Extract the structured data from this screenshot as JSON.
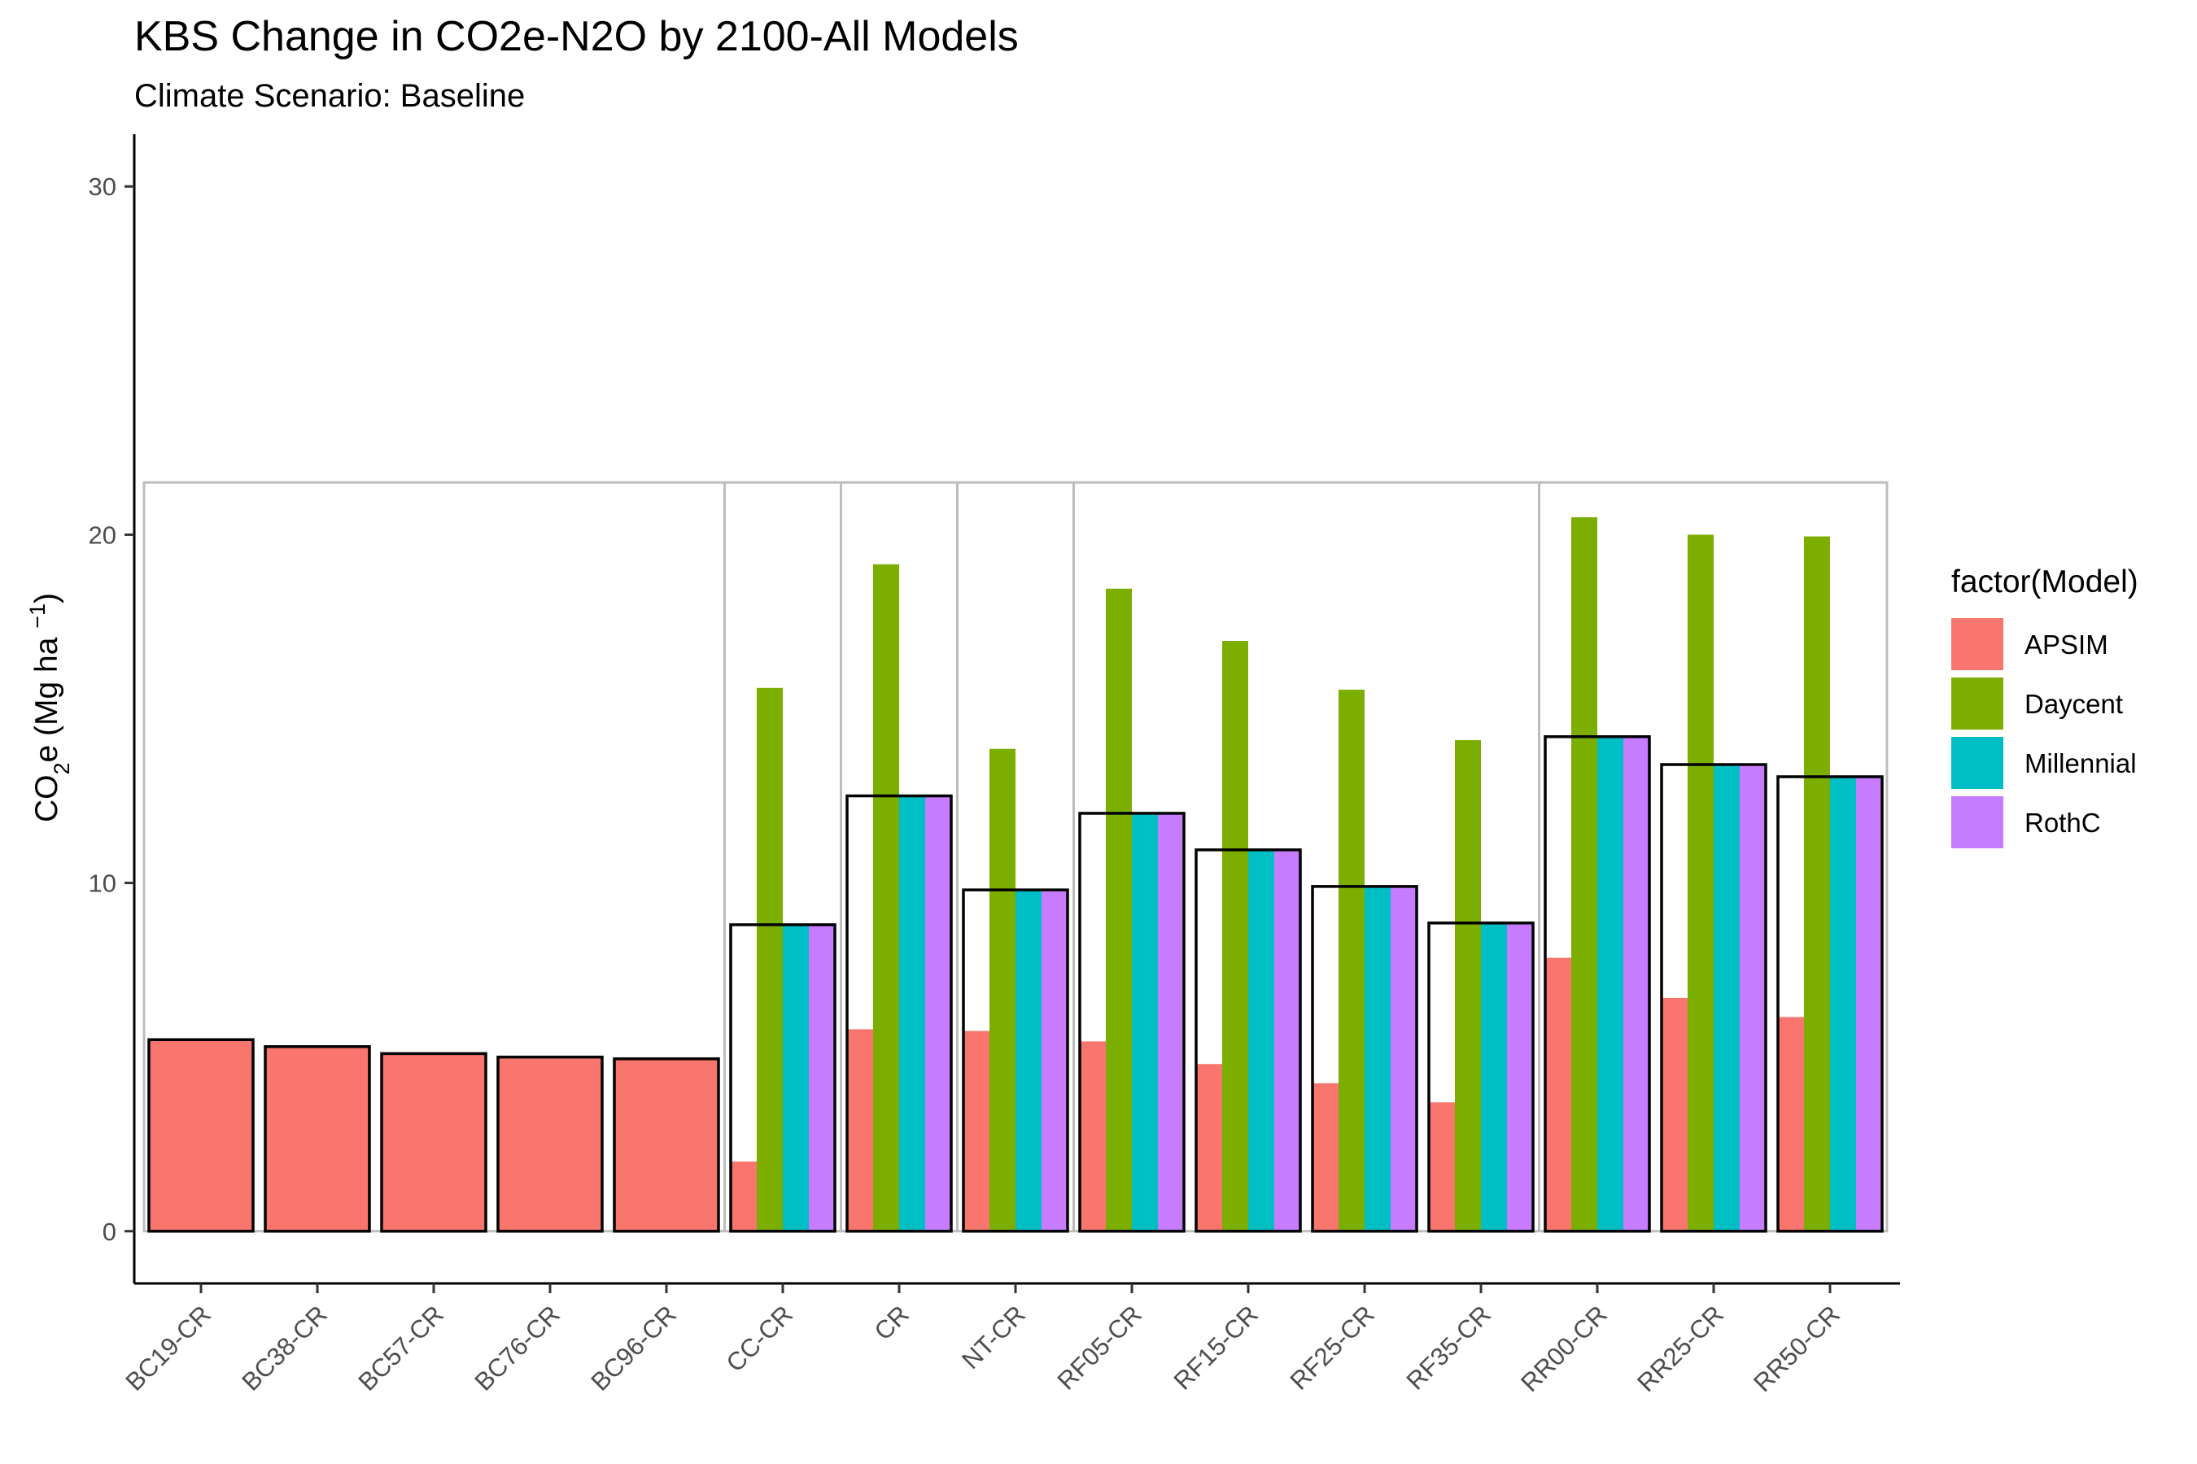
{
  "chart_data": {
    "type": "bar",
    "title": "KBS Change in CO2e-N2O by 2100-All Models",
    "subtitle": "Climate Scenario: Baseline",
    "ylabel": {
      "prefix": "CO",
      "sub": "2",
      "mid": "e (Mg ha ",
      "sup": "−1",
      "suffix": ")"
    },
    "xlabel": "",
    "ylim": [
      -1.5,
      31.5
    ],
    "yticks": [
      0,
      10,
      20,
      30
    ],
    "grid": false,
    "legend": {
      "title": "factor(Model)",
      "position": "right",
      "entries": [
        {
          "name": "APSIM",
          "color": "#F8766D"
        },
        {
          "name": "Daycent",
          "color": "#7CAE00"
        },
        {
          "name": "Millennial",
          "color": "#00BFC4"
        },
        {
          "name": "RothC",
          "color": "#C77CFF"
        }
      ]
    },
    "categories": [
      "BC19-CR",
      "BC38-CR",
      "BC57-CR",
      "BC76-CR",
      "BC96-CR",
      "CC-CR",
      "CR",
      "NT-CR",
      "RF05-CR",
      "RF15-CR",
      "RF25-CR",
      "RF35-CR",
      "RR00-CR",
      "RR25-CR",
      "RR50-CR"
    ],
    "series": [
      {
        "name": "APSIM",
        "values": [
          5.5,
          5.3,
          5.1,
          5.0,
          4.95,
          2.0,
          5.8,
          5.75,
          5.45,
          4.8,
          4.25,
          3.7,
          7.85,
          6.7,
          6.15
        ]
      },
      {
        "name": "Daycent",
        "values": [
          null,
          null,
          null,
          null,
          null,
          15.6,
          19.15,
          13.85,
          18.45,
          16.95,
          15.55,
          14.1,
          20.5,
          20.0,
          19.95
        ]
      },
      {
        "name": "Millennial",
        "values": [
          null,
          null,
          null,
          null,
          null,
          8.8,
          12.5,
          9.8,
          12.0,
          10.95,
          9.9,
          8.85,
          14.2,
          13.4,
          13.05
        ]
      },
      {
        "name": "RothC",
        "values": [
          null,
          null,
          null,
          null,
          null,
          8.8,
          12.5,
          9.8,
          12.0,
          10.95,
          9.9,
          8.85,
          14.2,
          13.4,
          13.05
        ]
      }
    ],
    "mean_outline": [
      5.5,
      5.3,
      5.1,
      5.0,
      4.95,
      8.8,
      12.5,
      9.8,
      12.0,
      10.95,
      9.9,
      8.85,
      14.2,
      13.4,
      13.05
    ],
    "grey_frame": {
      "top": 21.5,
      "dividers_after": [
        "BC96-CR",
        "CC-CR",
        "CR",
        "NT-CR",
        "RF35-CR"
      ]
    }
  }
}
